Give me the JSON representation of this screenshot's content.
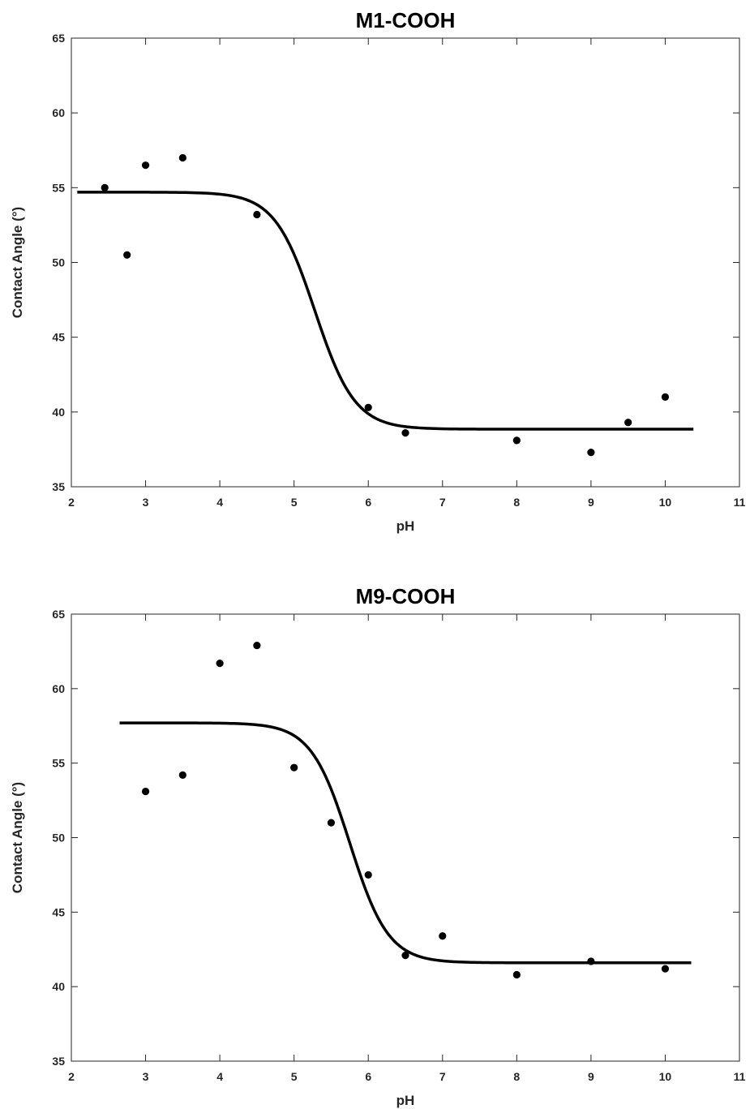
{
  "chart_data": [
    {
      "type": "scatter",
      "title": "M1-COOH",
      "xlabel": "pH",
      "ylabel": "Contact Angle (°)",
      "xlim": [
        2,
        11
      ],
      "ylim": [
        35,
        65
      ],
      "xticks": [
        2,
        3,
        4,
        5,
        6,
        7,
        8,
        9,
        10,
        11
      ],
      "yticks": [
        35,
        40,
        45,
        50,
        55,
        60,
        65
      ],
      "grid": false,
      "points": {
        "x": [
          2.45,
          2.75,
          3.0,
          3.5,
          4.5,
          6.0,
          6.5,
          8.0,
          9.0,
          9.5,
          10.0
        ],
        "y": [
          55.0,
          50.5,
          56.5,
          57.0,
          53.2,
          40.3,
          38.6,
          38.1,
          37.3,
          39.3,
          41.0
        ]
      },
      "fit": {
        "type": "sigmoid",
        "x_start": 2.08,
        "x_end": 10.38,
        "top": 54.7,
        "bottom": 38.85,
        "midpoint": 5.28,
        "slope": 0.27
      }
    },
    {
      "type": "scatter",
      "title": "M9-COOH",
      "xlabel": "pH",
      "ylabel": "Contact Angle (°)",
      "xlim": [
        2,
        11
      ],
      "ylim": [
        35,
        65
      ],
      "xticks": [
        2,
        3,
        4,
        5,
        6,
        7,
        8,
        9,
        10,
        11
      ],
      "yticks": [
        35,
        40,
        45,
        50,
        55,
        60,
        65
      ],
      "grid": false,
      "points": {
        "x": [
          3.0,
          3.5,
          4.0,
          4.5,
          5.0,
          5.5,
          6.0,
          6.5,
          7.0,
          8.0,
          9.0,
          10.0
        ],
        "y": [
          53.1,
          54.2,
          61.7,
          62.9,
          54.7,
          51.0,
          47.5,
          42.1,
          43.4,
          40.8,
          41.7,
          41.2
        ]
      },
      "fit": {
        "type": "sigmoid",
        "x_start": 2.65,
        "x_end": 10.35,
        "top": 57.7,
        "bottom": 41.6,
        "midpoint": 5.75,
        "slope": 0.26
      }
    }
  ]
}
